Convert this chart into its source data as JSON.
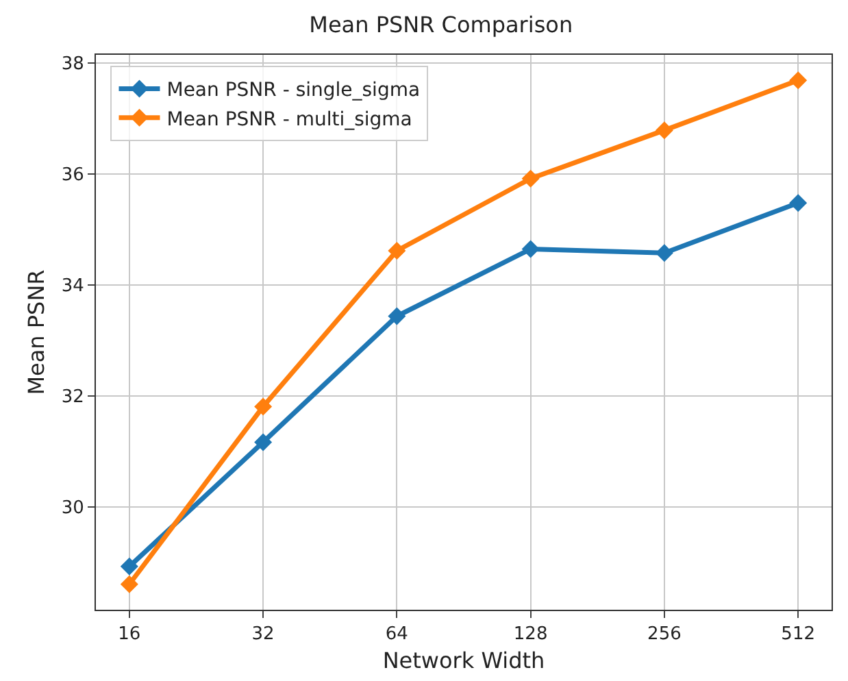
{
  "chart_data": {
    "type": "line",
    "title": "Mean PSNR Comparison",
    "xlabel": "Network Width",
    "ylabel": "Mean PSNR",
    "categories": [
      "16",
      "32",
      "64",
      "128",
      "256",
      "512"
    ],
    "series": [
      {
        "name": "Mean PSNR - single_sigma",
        "color": "#1f77b4",
        "values": [
          28.93,
          31.17,
          33.44,
          34.65,
          34.58,
          35.48
        ]
      },
      {
        "name": "Mean PSNR - multi_sigma",
        "color": "#ff7f0e",
        "values": [
          28.61,
          31.81,
          34.62,
          35.92,
          36.79,
          37.69
        ]
      }
    ],
    "ylim": [
      28.15,
      38.15
    ],
    "yticks": [
      30,
      32,
      34,
      36,
      38
    ],
    "grid": true,
    "legend": "top left",
    "marker": "diamond",
    "line_style": "solid"
  }
}
